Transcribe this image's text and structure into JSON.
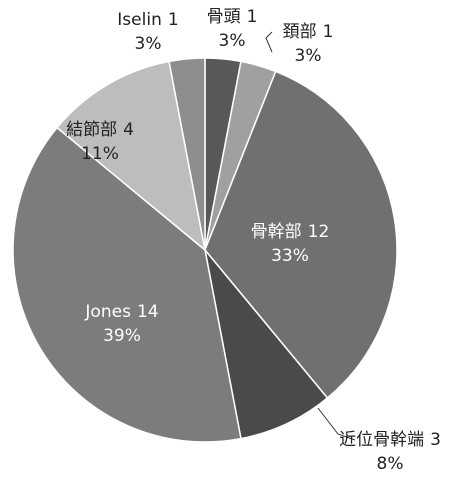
{
  "chart_data": {
    "type": "pie",
    "categories": [
      "骨頭",
      "頚部",
      "骨幹部",
      "近位骨幹端",
      "Jones",
      "結節部",
      "Iselin"
    ],
    "counts": [
      1,
      1,
      12,
      3,
      14,
      4,
      1
    ],
    "values": [
      3,
      3,
      33,
      8,
      39,
      11,
      3
    ],
    "value_labels": [
      "3%",
      "3%",
      "33%",
      "8%",
      "39%",
      "11%",
      "3%"
    ],
    "colors": [
      "#585858",
      "#a0a0a0",
      "#707070",
      "#4a4a4a",
      "#7c7c7c",
      "#bdbdbd",
      "#8e8e8e"
    ]
  }
}
